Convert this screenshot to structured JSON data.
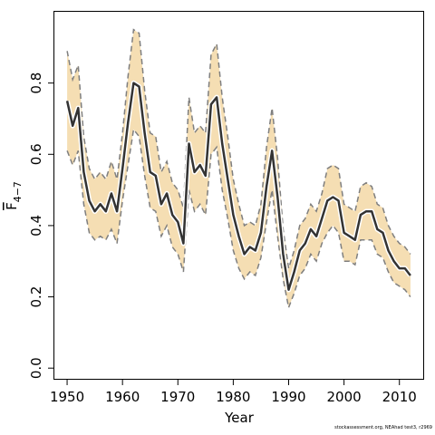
{
  "chart_data": {
    "type": "line",
    "xlabel": "Year",
    "ylabel_main": "F",
    "ylabel_sub": "4−7",
    "xlim": [
      1947.7,
      2014.3
    ],
    "ylim": [
      -0.03,
      1.0
    ],
    "xticks": [
      1950,
      1960,
      1970,
      1980,
      1990,
      2000,
      2010
    ],
    "yticks": [
      0.0,
      0.2,
      0.4,
      0.6,
      0.8
    ],
    "ytick_labels": [
      "0.0",
      "0.2",
      "0.4",
      "0.6",
      "0.8"
    ],
    "band_color": "#f5deb3",
    "line_color": "#333333",
    "bound_color": "#7f7f7f",
    "x": [
      1950,
      1951,
      1952,
      1953,
      1954,
      1955,
      1956,
      1957,
      1958,
      1959,
      1960,
      1961,
      1962,
      1963,
      1964,
      1965,
      1966,
      1967,
      1968,
      1969,
      1970,
      1971,
      1972,
      1973,
      1974,
      1975,
      1976,
      1977,
      1978,
      1979,
      1980,
      1981,
      1982,
      1983,
      1984,
      1985,
      1986,
      1987,
      1988,
      1989,
      1990,
      1991,
      1992,
      1993,
      1994,
      1995,
      1996,
      1997,
      1998,
      1999,
      2000,
      2001,
      2002,
      2003,
      2004,
      2005,
      2006,
      2007,
      2008,
      2009,
      2010,
      2011,
      2012
    ],
    "series": [
      {
        "role": "estimate",
        "values": [
          0.75,
          0.68,
          0.73,
          0.55,
          0.47,
          0.44,
          0.46,
          0.44,
          0.49,
          0.44,
          0.56,
          0.69,
          0.8,
          0.79,
          0.66,
          0.55,
          0.54,
          0.46,
          0.49,
          0.43,
          0.41,
          0.35,
          0.63,
          0.55,
          0.57,
          0.54,
          0.74,
          0.76,
          0.63,
          0.53,
          0.43,
          0.37,
          0.32,
          0.34,
          0.33,
          0.38,
          0.51,
          0.61,
          0.48,
          0.32,
          0.22,
          0.27,
          0.33,
          0.35,
          0.39,
          0.37,
          0.42,
          0.47,
          0.48,
          0.47,
          0.38,
          0.37,
          0.36,
          0.43,
          0.44,
          0.44,
          0.39,
          0.38,
          0.33,
          0.3,
          0.28,
          0.28,
          0.26
        ]
      },
      {
        "role": "upper",
        "values": [
          0.89,
          0.81,
          0.85,
          0.65,
          0.56,
          0.53,
          0.55,
          0.53,
          0.58,
          0.53,
          0.66,
          0.82,
          0.95,
          0.94,
          0.78,
          0.66,
          0.65,
          0.55,
          0.58,
          0.52,
          0.5,
          0.45,
          0.76,
          0.66,
          0.68,
          0.66,
          0.88,
          0.91,
          0.76,
          0.65,
          0.53,
          0.46,
          0.4,
          0.41,
          0.4,
          0.46,
          0.62,
          0.73,
          0.59,
          0.39,
          0.28,
          0.33,
          0.4,
          0.42,
          0.46,
          0.44,
          0.49,
          0.56,
          0.57,
          0.56,
          0.46,
          0.45,
          0.44,
          0.51,
          0.52,
          0.51,
          0.46,
          0.45,
          0.4,
          0.37,
          0.35,
          0.34,
          0.32
        ]
      },
      {
        "role": "lower",
        "values": [
          0.61,
          0.57,
          0.61,
          0.46,
          0.38,
          0.36,
          0.37,
          0.36,
          0.39,
          0.35,
          0.47,
          0.57,
          0.67,
          0.65,
          0.54,
          0.45,
          0.44,
          0.37,
          0.4,
          0.34,
          0.32,
          0.27,
          0.5,
          0.44,
          0.46,
          0.43,
          0.6,
          0.62,
          0.5,
          0.42,
          0.33,
          0.28,
          0.25,
          0.27,
          0.26,
          0.31,
          0.41,
          0.5,
          0.37,
          0.25,
          0.17,
          0.21,
          0.26,
          0.28,
          0.32,
          0.3,
          0.35,
          0.38,
          0.4,
          0.38,
          0.3,
          0.3,
          0.29,
          0.36,
          0.36,
          0.36,
          0.32,
          0.31,
          0.27,
          0.24,
          0.23,
          0.22,
          0.2
        ]
      }
    ]
  },
  "credit": "stockassessment.org, NEAhad test3, r2969"
}
